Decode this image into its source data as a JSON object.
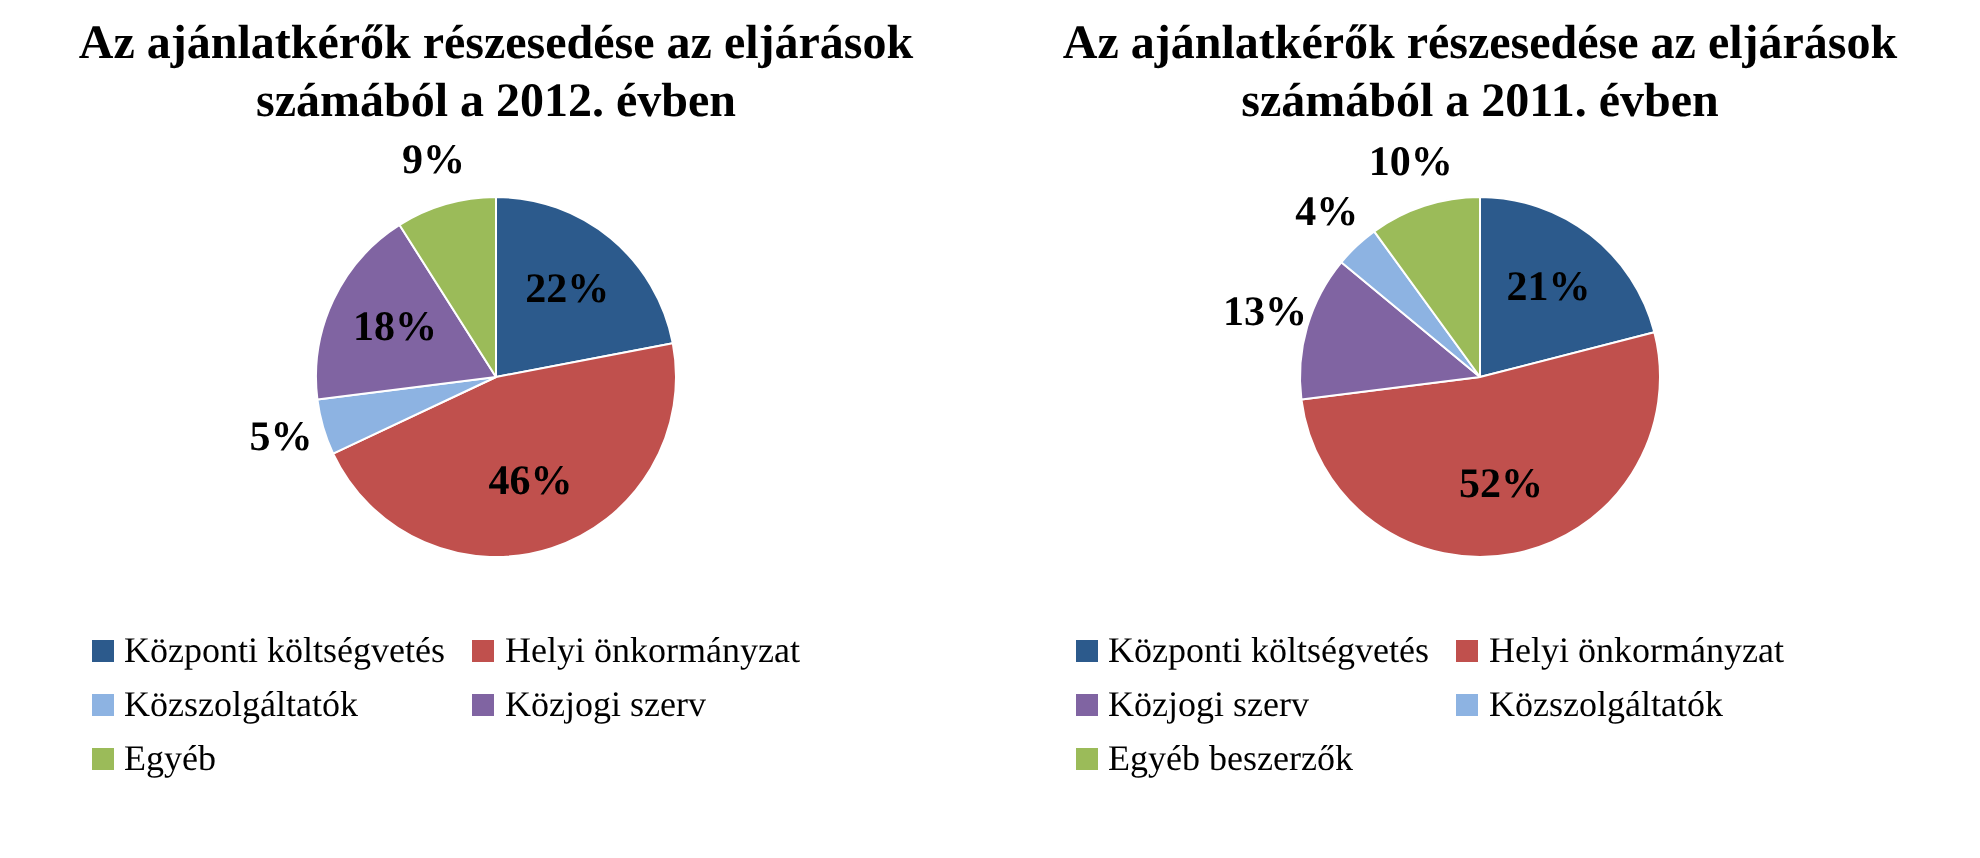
{
  "chart_data": [
    {
      "type": "pie",
      "title": "Az ajánlatkérők részesedése az eljárások számából a 2012. évben",
      "categories": [
        "Központi költségvetés",
        "Helyi önkormányzat",
        "Közszolgáltatók",
        "Közjogi szerv",
        "Egyéb"
      ],
      "values": [
        22,
        46,
        5,
        18,
        9
      ],
      "value_labels": [
        "22%",
        "46%",
        "5%",
        "18%",
        "9%"
      ],
      "colors": [
        "#2c5a8c",
        "#c0504d",
        "#8db3e2",
        "#8064a2",
        "#9bbb59"
      ],
      "legend": "bottom"
    },
    {
      "type": "pie",
      "title": "Az ajánlatkérők részesedése az eljárások számából a 2011. évben",
      "categories": [
        "Központi költségvetés",
        "Helyi önkormányzat",
        "Közjogi szerv",
        "Közszolgáltatók",
        "Egyéb beszerzők"
      ],
      "values": [
        21,
        52,
        13,
        4,
        10
      ],
      "value_labels": [
        "21%",
        "52%",
        "13%",
        "4%",
        "10%"
      ],
      "colors": [
        "#2c5a8c",
        "#c0504d",
        "#8064a2",
        "#8db3e2",
        "#9bbb59"
      ],
      "legend": "bottom"
    }
  ]
}
